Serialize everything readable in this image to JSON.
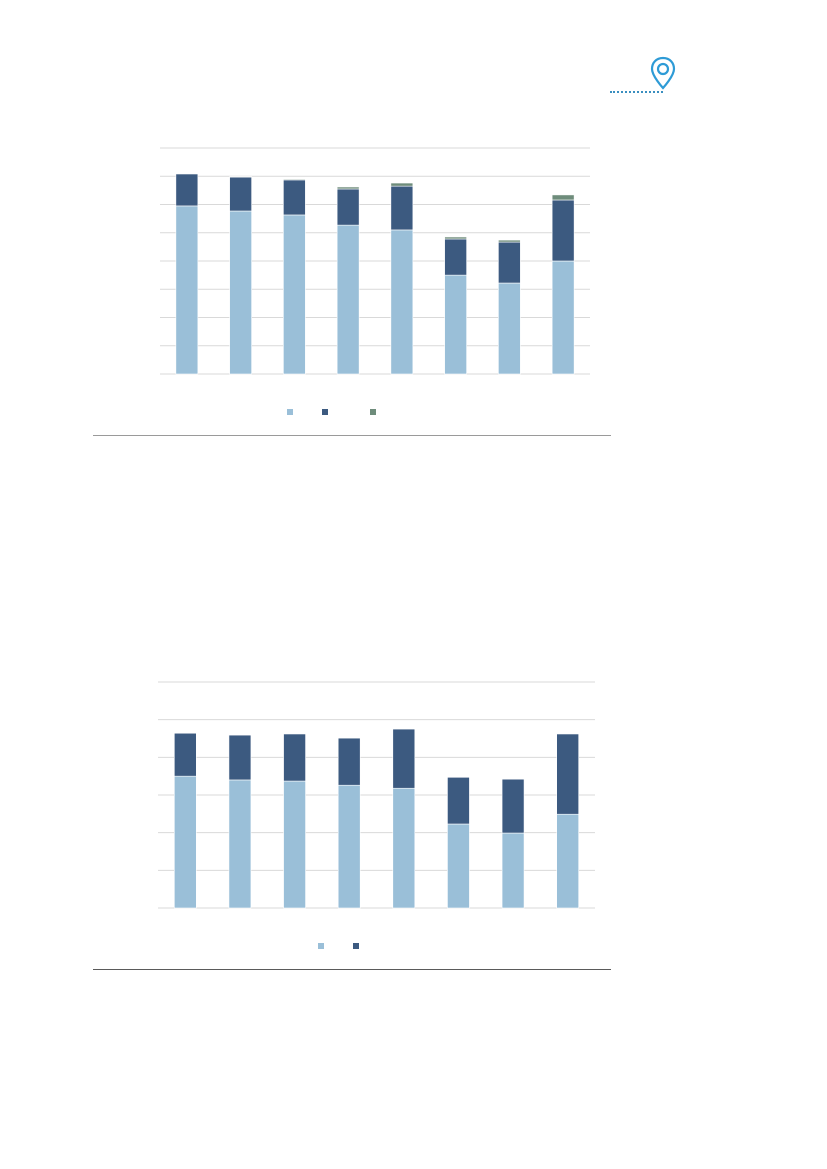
{
  "colors": {
    "series_light": "#9abfd8",
    "series_dark": "#3c5a80",
    "series_green": "#6e8c7b",
    "grid": "#d9d9d9",
    "pin": "#2e9bd6"
  },
  "header": {
    "icon": "map-pin-icon"
  },
  "chart_data": [
    {
      "type": "bar",
      "stacked": true,
      "title": "",
      "xlabel": "",
      "ylabel": "",
      "categories": [
        "",
        "",
        "",
        "",
        "",
        "",
        "",
        ""
      ],
      "ylim": [
        0,
        8
      ],
      "grid": true,
      "legend": "bottom",
      "series": [
        {
          "values": [
            5.95,
            5.77,
            5.63,
            5.27,
            5.1,
            3.5,
            3.22,
            4.0
          ],
          "color": "#9abfd8"
        },
        {
          "values": [
            1.13,
            1.2,
            1.24,
            1.28,
            1.55,
            1.28,
            1.45,
            2.16
          ],
          "color": "#3c5a80"
        },
        {
          "values": [
            0.0,
            0.02,
            0.03,
            0.07,
            0.11,
            0.07,
            0.07,
            0.18
          ],
          "color": "#6e8c7b"
        }
      ]
    },
    {
      "type": "bar",
      "stacked": true,
      "title": "",
      "xlabel": "",
      "ylabel": "",
      "categories": [
        "",
        "",
        "",
        "",
        "",
        "",
        "",
        ""
      ],
      "ylim": [
        0,
        6
      ],
      "grid": true,
      "legend": "bottom",
      "series": [
        {
          "values": [
            3.5,
            3.4,
            3.37,
            3.26,
            3.18,
            2.23,
            1.99,
            2.49
          ],
          "color": "#9abfd8"
        },
        {
          "values": [
            1.14,
            1.19,
            1.25,
            1.25,
            1.57,
            1.24,
            1.43,
            2.13
          ],
          "color": "#3c5a80"
        }
      ]
    }
  ]
}
